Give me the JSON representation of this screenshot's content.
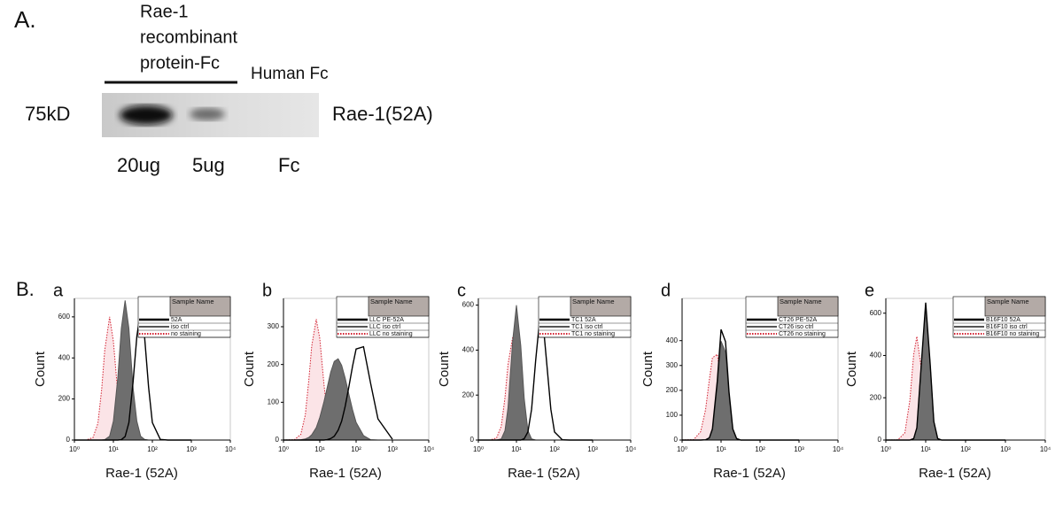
{
  "panel_a": {
    "label": "A.",
    "header_lines": [
      "Rae-1",
      "recombinant",
      "protein-Fc"
    ],
    "human_fc": "Human Fc",
    "marker": "75kD",
    "band_label": "Rae-1(52A)",
    "lanes": [
      "20ug",
      "5ug",
      "Fc"
    ]
  },
  "panel_b_label": "B.",
  "chart_data": [
    {
      "type": "area",
      "panel": "a",
      "xlabel": "Rae-1 (52A)",
      "ylabel": "Count",
      "xscale": "log",
      "legend_title": "Sample Name",
      "xlim": [
        1,
        10000
      ],
      "xticks": [
        {
          "value": 1,
          "label": "10⁰"
        },
        {
          "value": 10,
          "label": "10¹"
        },
        {
          "value": 100,
          "label": "10²"
        },
        {
          "value": 1000,
          "label": "10³"
        },
        {
          "value": 10000,
          "label": "10⁴"
        }
      ],
      "ylim": [
        0,
        690
      ],
      "yticks": [
        0,
        200,
        400,
        600
      ],
      "x": [
        1,
        2,
        3,
        4,
        5,
        6,
        8,
        10,
        13,
        16,
        20,
        25,
        32,
        40,
        50,
        63,
        80,
        100,
        160,
        250,
        400,
        1000
      ],
      "series": [
        {
          "name": "52A",
          "color": "#000000",
          "fill": null,
          "dash": false,
          "values": [
            0,
            0,
            0,
            0,
            0,
            0,
            0,
            0,
            0,
            2,
            17,
            85,
            283,
            505,
            630,
            505,
            258,
            85,
            3,
            0,
            0,
            0
          ]
        },
        {
          "name": "iso ctrl",
          "color": "#555555",
          "fill": "#6e6e6e",
          "dash": false,
          "values": [
            0,
            0,
            0,
            0,
            0,
            2,
            19,
            92,
            305,
            545,
            680,
            545,
            255,
            92,
            19,
            3,
            0,
            0,
            0,
            0,
            0,
            0
          ]
        },
        {
          "name": "no staining",
          "color": "#d22030",
          "fill": "#fbe4e7",
          "dash": true,
          "values": [
            0,
            0,
            12,
            81,
            246,
            437,
            600,
            481,
            225,
            81,
            17,
            2,
            0,
            0,
            0,
            0,
            0,
            0,
            0,
            0,
            0,
            0
          ]
        }
      ]
    },
    {
      "type": "area",
      "panel": "b",
      "xlabel": "Rae-1 (52A)",
      "ylabel": "Count",
      "xscale": "log",
      "legend_title": "Sample Name",
      "xlim": [
        1,
        10000
      ],
      "xticks": [
        {
          "value": 1,
          "label": "10⁰"
        },
        {
          "value": 10,
          "label": "10¹"
        },
        {
          "value": 100,
          "label": "10²"
        },
        {
          "value": 1000,
          "label": "10³"
        },
        {
          "value": 10000,
          "label": "10⁴"
        }
      ],
      "ylim": [
        0,
        375
      ],
      "yticks": [
        0,
        100,
        200,
        300
      ],
      "x": [
        1,
        2,
        3,
        4,
        5,
        6,
        8,
        10,
        13,
        16,
        20,
        25,
        32,
        40,
        50,
        63,
        80,
        100,
        160,
        250,
        400,
        1000
      ],
      "series": [
        {
          "name": "LLC PE-52A",
          "color": "#000000",
          "fill": null,
          "dash": false,
          "values": [
            0,
            0,
            0,
            0,
            0,
            0,
            0,
            0,
            0,
            1,
            4,
            10,
            26,
            50,
            89,
            140,
            196,
            241,
            247,
            151,
            56,
            2
          ]
        },
        {
          "name": "LLC iso ctrl",
          "color": "#555555",
          "fill": "#6e6e6e",
          "dash": false,
          "values": [
            0,
            0,
            1,
            3,
            7,
            14,
            33,
            60,
            101,
            139,
            180,
            208,
            215,
            198,
            164,
            122,
            80,
            47,
            12,
            1,
            0,
            0
          ]
        },
        {
          "name": "LLC no staining",
          "color": "#d22030",
          "fill": "#fbe4e7",
          "dash": true,
          "values": [
            0,
            1,
            15,
            67,
            160,
            249,
            320,
            269,
            149,
            67,
            20,
            4,
            0,
            0,
            0,
            0,
            0,
            0,
            0,
            0,
            0,
            0
          ]
        }
      ]
    },
    {
      "type": "area",
      "panel": "c",
      "xlabel": "Rae-1 (52A)",
      "ylabel": "Count",
      "xscale": "log",
      "legend_title": "Sample Name",
      "xlim": [
        1,
        10000
      ],
      "xticks": [
        {
          "value": 1,
          "label": "10⁰"
        },
        {
          "value": 10,
          "label": "10¹"
        },
        {
          "value": 100,
          "label": "10²"
        },
        {
          "value": 1000,
          "label": "10³"
        },
        {
          "value": 10000,
          "label": "10⁴"
        }
      ],
      "ylim": [
        0,
        630
      ],
      "yticks": [
        0,
        200,
        400,
        600
      ],
      "x": [
        1,
        2,
        3,
        4,
        5,
        6,
        8,
        10,
        13,
        16,
        20,
        25,
        32,
        40,
        50,
        63,
        80,
        100,
        160,
        250,
        400,
        1000
      ],
      "series": [
        {
          "name": "TC1 52A",
          "color": "#000000",
          "fill": null,
          "dash": false,
          "values": [
            0,
            0,
            0,
            0,
            0,
            0,
            0,
            0,
            0,
            6,
            36,
            137,
            355,
            522,
            522,
            334,
            137,
            36,
            1,
            0,
            0,
            0
          ]
        },
        {
          "name": "TC1 iso ctrl",
          "color": "#555555",
          "fill": "#6e6e6e",
          "dash": false,
          "values": [
            0,
            0,
            0,
            5,
            42,
            143,
            445,
            600,
            419,
            185,
            42,
            5,
            0,
            0,
            0,
            0,
            0,
            0,
            0,
            0,
            0,
            0
          ]
        },
        {
          "name": "TC1 no staining",
          "color": "#d22030",
          "fill": "#fbe4e7",
          "dash": true,
          "values": [
            0,
            0,
            9,
            62,
            189,
            335,
            460,
            369,
            173,
            62,
            13,
            2,
            0,
            0,
            0,
            0,
            0,
            0,
            0,
            0,
            0,
            0
          ]
        }
      ]
    },
    {
      "type": "area",
      "panel": "d",
      "xlabel": "Rae-1 (52A)",
      "ylabel": "Count",
      "xscale": "log",
      "legend_title": "Sample Name",
      "xlim": [
        1,
        10000
      ],
      "xticks": [
        {
          "value": 1,
          "label": "10⁰"
        },
        {
          "value": 10,
          "label": "10¹"
        },
        {
          "value": 100,
          "label": "10²"
        },
        {
          "value": 1000,
          "label": "10³"
        },
        {
          "value": 10000,
          "label": "10⁴"
        }
      ],
      "ylim": [
        0,
        570
      ],
      "yticks": [
        0,
        100,
        200,
        300,
        400
      ],
      "x": [
        1,
        2,
        3,
        4,
        5,
        6,
        8,
        10,
        13,
        16,
        20,
        25,
        32,
        40,
        50,
        63,
        80,
        100,
        160,
        250,
        400,
        1000
      ],
      "series": [
        {
          "name": "CT26 PE-52A",
          "color": "#000000",
          "fill": null,
          "dash": false,
          "values": [
            0,
            0,
            0,
            1,
            9,
            45,
            238,
            445,
            396,
            194,
            45,
            6,
            0,
            0,
            0,
            0,
            0,
            0,
            0,
            0,
            0,
            0
          ]
        },
        {
          "name": "CT26 iso ctrl",
          "color": "#555555",
          "fill": "#6e6e6e",
          "dash": false,
          "values": [
            0,
            0,
            0,
            1,
            8,
            40,
            213,
            398,
            354,
            173,
            40,
            5,
            0,
            0,
            0,
            0,
            0,
            0,
            0,
            0,
            0,
            0
          ]
        },
        {
          "name": "CT26 no staining",
          "color": "#d22030",
          "fill": "#fbe4e7",
          "dash": true,
          "values": [
            0,
            2,
            34,
            122,
            243,
            331,
            345,
            243,
            112,
            43,
            11,
            2,
            0,
            0,
            0,
            0,
            0,
            0,
            0,
            0,
            0,
            0
          ]
        }
      ]
    },
    {
      "type": "area",
      "panel": "e",
      "xlabel": "Rae-1 (52A)",
      "ylabel": "Count",
      "xscale": "log",
      "legend_title": "Sample Name",
      "xlim": [
        1,
        10000
      ],
      "xticks": [
        {
          "value": 1,
          "label": "10⁰"
        },
        {
          "value": 10,
          "label": "10¹"
        },
        {
          "value": 100,
          "label": "10²"
        },
        {
          "value": 1000,
          "label": "10³"
        },
        {
          "value": 10000,
          "label": "10⁴"
        }
      ],
      "ylim": [
        0,
        670
      ],
      "yticks": [
        0,
        200,
        400,
        600
      ],
      "x": [
        1,
        2,
        3,
        4,
        5,
        6,
        8,
        10,
        13,
        16,
        20,
        25,
        32,
        40,
        50,
        63,
        80,
        100,
        160,
        250,
        400,
        1000
      ],
      "series": [
        {
          "name": "B16F10 52A",
          "color": "#000000",
          "fill": null,
          "dash": false,
          "values": [
            0,
            0,
            0,
            0,
            7,
            58,
            394,
            650,
            355,
            88,
            7,
            0,
            0,
            0,
            0,
            0,
            0,
            0,
            0,
            0,
            0,
            0
          ]
        },
        {
          "name": "B16F10 iso ctrl",
          "color": "#555555",
          "fill": "#6e6e6e",
          "dash": false,
          "values": [
            0,
            0,
            0,
            0,
            7,
            57,
            388,
            640,
            350,
            87,
            7,
            0,
            0,
            0,
            0,
            0,
            0,
            0,
            0,
            0,
            0,
            0
          ]
        },
        {
          "name": "B16F10 no staining",
          "color": "#d22030",
          "fill": "#fbe4e7",
          "dash": true,
          "values": [
            0,
            1,
            34,
            187,
            405,
            490,
            319,
            117,
            20,
            3,
            0,
            0,
            0,
            0,
            0,
            0,
            0,
            0,
            0,
            0,
            0,
            0
          ]
        }
      ]
    }
  ]
}
